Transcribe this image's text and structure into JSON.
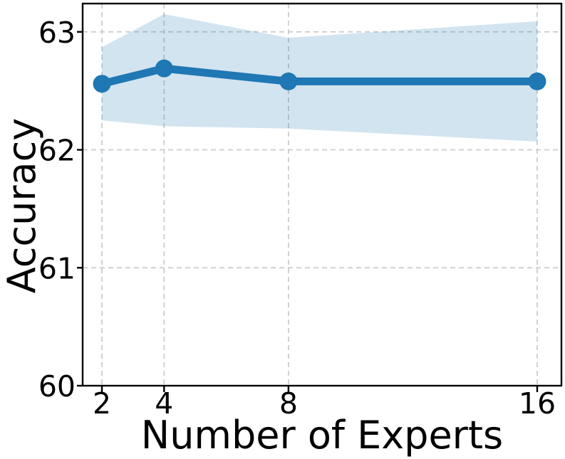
{
  "figure": {
    "background": "#ffffff"
  },
  "chart_data": {
    "type": "line",
    "title": "",
    "xlabel": "Number of Experts",
    "ylabel": "Accuracy",
    "x": [
      2,
      4,
      8,
      16
    ],
    "series": [
      {
        "name": "accuracy-mean",
        "values": [
          62.56,
          62.69,
          62.58,
          62.58
        ],
        "color": "#1f77b4",
        "marker": "circle",
        "line_width": 11,
        "marker_radius": 12.5
      }
    ],
    "band": {
      "name": "accuracy-confidence-band",
      "upper": [
        62.87,
        63.15,
        62.95,
        63.09
      ],
      "lower": [
        62.25,
        62.2,
        62.18,
        62.07
      ],
      "color": "#1f77b4",
      "opacity": 0.2
    },
    "xticks": {
      "values": [
        2,
        4,
        8,
        16
      ],
      "labels": [
        "2",
        "4",
        "8",
        "16"
      ]
    },
    "yticks": {
      "values": [
        60,
        61,
        62,
        63
      ],
      "labels": [
        "60",
        "61",
        "62",
        "63"
      ]
    },
    "xlim": [
      1.38,
      16.78
    ],
    "ylim": [
      60,
      63.24
    ],
    "grid": {
      "visible": true,
      "style": "dashed",
      "color": "#cccccc"
    },
    "legend": {
      "visible": false
    },
    "axis_color": "#000000",
    "tick_label_color": "#000000",
    "tick_label_size": 41,
    "axis_label_size": 54
  }
}
